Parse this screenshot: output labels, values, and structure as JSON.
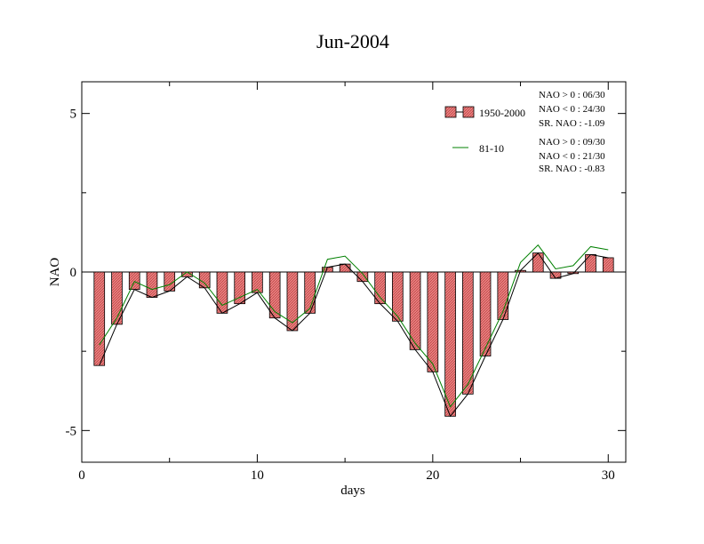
{
  "chart_data": {
    "type": "bar",
    "title": "Jun-2004",
    "xlabel": "days",
    "ylabel": "NAO",
    "xlim": [
      0,
      31
    ],
    "ylim": [
      -6,
      6
    ],
    "xticks": [
      0,
      10,
      20,
      30
    ],
    "yticks": [
      -5,
      0,
      5
    ],
    "x": [
      1,
      2,
      3,
      4,
      5,
      6,
      7,
      8,
      9,
      10,
      11,
      12,
      13,
      14,
      15,
      16,
      17,
      18,
      19,
      20,
      21,
      22,
      23,
      24,
      25,
      26,
      27,
      28,
      29,
      30
    ],
    "series": [
      {
        "name": "1950-2000",
        "kind": "bar",
        "color": "#e06666",
        "values": [
          -2.95,
          -1.65,
          -0.55,
          -0.8,
          -0.6,
          -0.15,
          -0.5,
          -1.3,
          -1.0,
          -0.65,
          -1.45,
          -1.85,
          -1.3,
          0.15,
          0.25,
          -0.3,
          -1.0,
          -1.55,
          -2.45,
          -3.15,
          -4.55,
          -3.85,
          -2.65,
          -1.5,
          0.05,
          0.6,
          -0.2,
          -0.05,
          0.55,
          0.45
        ]
      },
      {
        "name": "1950-2000 line",
        "kind": "line",
        "color": "#000000",
        "values": [
          -2.95,
          -1.65,
          -0.55,
          -0.8,
          -0.6,
          -0.15,
          -0.5,
          -1.3,
          -1.0,
          -0.65,
          -1.45,
          -1.85,
          -1.3,
          0.15,
          0.25,
          -0.3,
          -1.0,
          -1.55,
          -2.45,
          -3.15,
          -4.55,
          -3.85,
          -2.65,
          -1.5,
          0.05,
          0.6,
          -0.2,
          -0.05,
          0.55,
          0.45
        ]
      },
      {
        "name": "81-10",
        "kind": "line",
        "color": "#008000",
        "values": [
          -2.3,
          -1.45,
          -0.3,
          -0.55,
          -0.4,
          0.0,
          -0.35,
          -1.05,
          -0.8,
          -0.55,
          -1.25,
          -1.6,
          -1.15,
          0.4,
          0.5,
          -0.05,
          -0.8,
          -1.4,
          -2.25,
          -2.9,
          -4.25,
          -3.55,
          -2.4,
          -1.25,
          0.3,
          0.85,
          0.1,
          0.2,
          0.8,
          0.7
        ]
      }
    ],
    "legend": {
      "position": "top-right",
      "entries": [
        {
          "label": "1950-2000",
          "stats": [
            "NAO > 0 : 06/30",
            "NAO < 0 : 24/30",
            "SR. NAO : -1.09"
          ]
        },
        {
          "label": "81-10",
          "stats": [
            "NAO > 0 : 09/30",
            "NAO < 0 : 21/30",
            "SR. NAO : -0.83"
          ]
        }
      ]
    },
    "grid": false
  }
}
